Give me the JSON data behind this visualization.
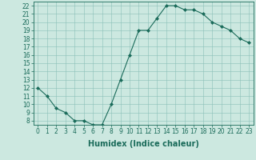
{
  "x": [
    0,
    1,
    2,
    3,
    4,
    5,
    6,
    7,
    8,
    9,
    10,
    11,
    12,
    13,
    14,
    15,
    16,
    17,
    18,
    19,
    20,
    21,
    22,
    23
  ],
  "y": [
    12,
    11,
    9.5,
    9,
    8,
    8,
    7.5,
    7.5,
    10,
    13,
    16,
    19,
    19,
    20.5,
    22,
    22,
    21.5,
    21.5,
    21,
    20,
    19.5,
    19,
    18,
    17.5
  ],
  "line_color": "#1a6b5a",
  "marker": "D",
  "marker_size": 2.0,
  "bg_color": "#cce8e0",
  "grid_color": "#8bbfb8",
  "xlabel": "Humidex (Indice chaleur)",
  "xlim": [
    -0.5,
    23.5
  ],
  "ylim": [
    7.5,
    22.5
  ],
  "yticks": [
    8,
    9,
    10,
    11,
    12,
    13,
    14,
    15,
    16,
    17,
    18,
    19,
    20,
    21,
    22
  ],
  "xticks": [
    0,
    1,
    2,
    3,
    4,
    5,
    6,
    7,
    8,
    9,
    10,
    11,
    12,
    13,
    14,
    15,
    16,
    17,
    18,
    19,
    20,
    21,
    22,
    23
  ],
  "tick_label_fontsize": 5.5,
  "xlabel_fontsize": 7.0,
  "axis_color": "#1a6b5a",
  "linewidth": 0.8
}
